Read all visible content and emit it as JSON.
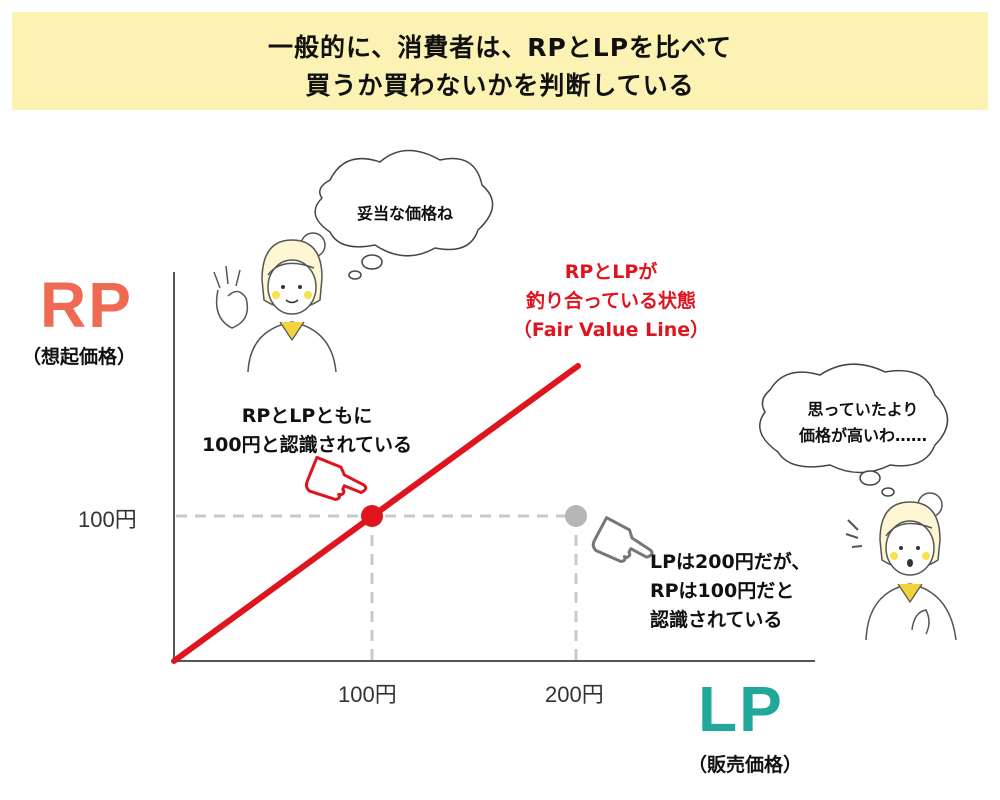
{
  "title": {
    "line1": "一般的に、消費者は、RPとLPを比べて",
    "line2": "買うか買わないかを判断している"
  },
  "y_axis": {
    "label": "RP",
    "sublabel": "（想起価格）",
    "tick": "100円"
  },
  "x_axis": {
    "label": "LP",
    "sublabel": "（販売価格）",
    "ticks": [
      "100円",
      "200円"
    ]
  },
  "fair_value_note": {
    "line1": "RPとLPが",
    "line2": "釣り合っている状態",
    "line3": "（Fair Value Line）"
  },
  "point_a_note": {
    "line1": "RPとLPともに",
    "line2": "100円と認識されている"
  },
  "point_b_note": {
    "line1": "LPは200円だが、",
    "line2": "RPは100円だと",
    "line3": "認識されている"
  },
  "bubble_top": "妥当な価格ね",
  "bubble_right": {
    "line1": "思っていたより",
    "line2": "価格が高いわ……"
  },
  "colors": {
    "rp": "#ee6a52",
    "lp": "#22a89a",
    "fair_line": "#e0141e",
    "banner": "#fbf2b4",
    "grey_point": "#b5b5b5"
  },
  "icons": [
    "pointing-hand-icon",
    "woman-ok-sign-icon",
    "woman-surprised-icon",
    "thought-bubble-icon"
  ]
}
